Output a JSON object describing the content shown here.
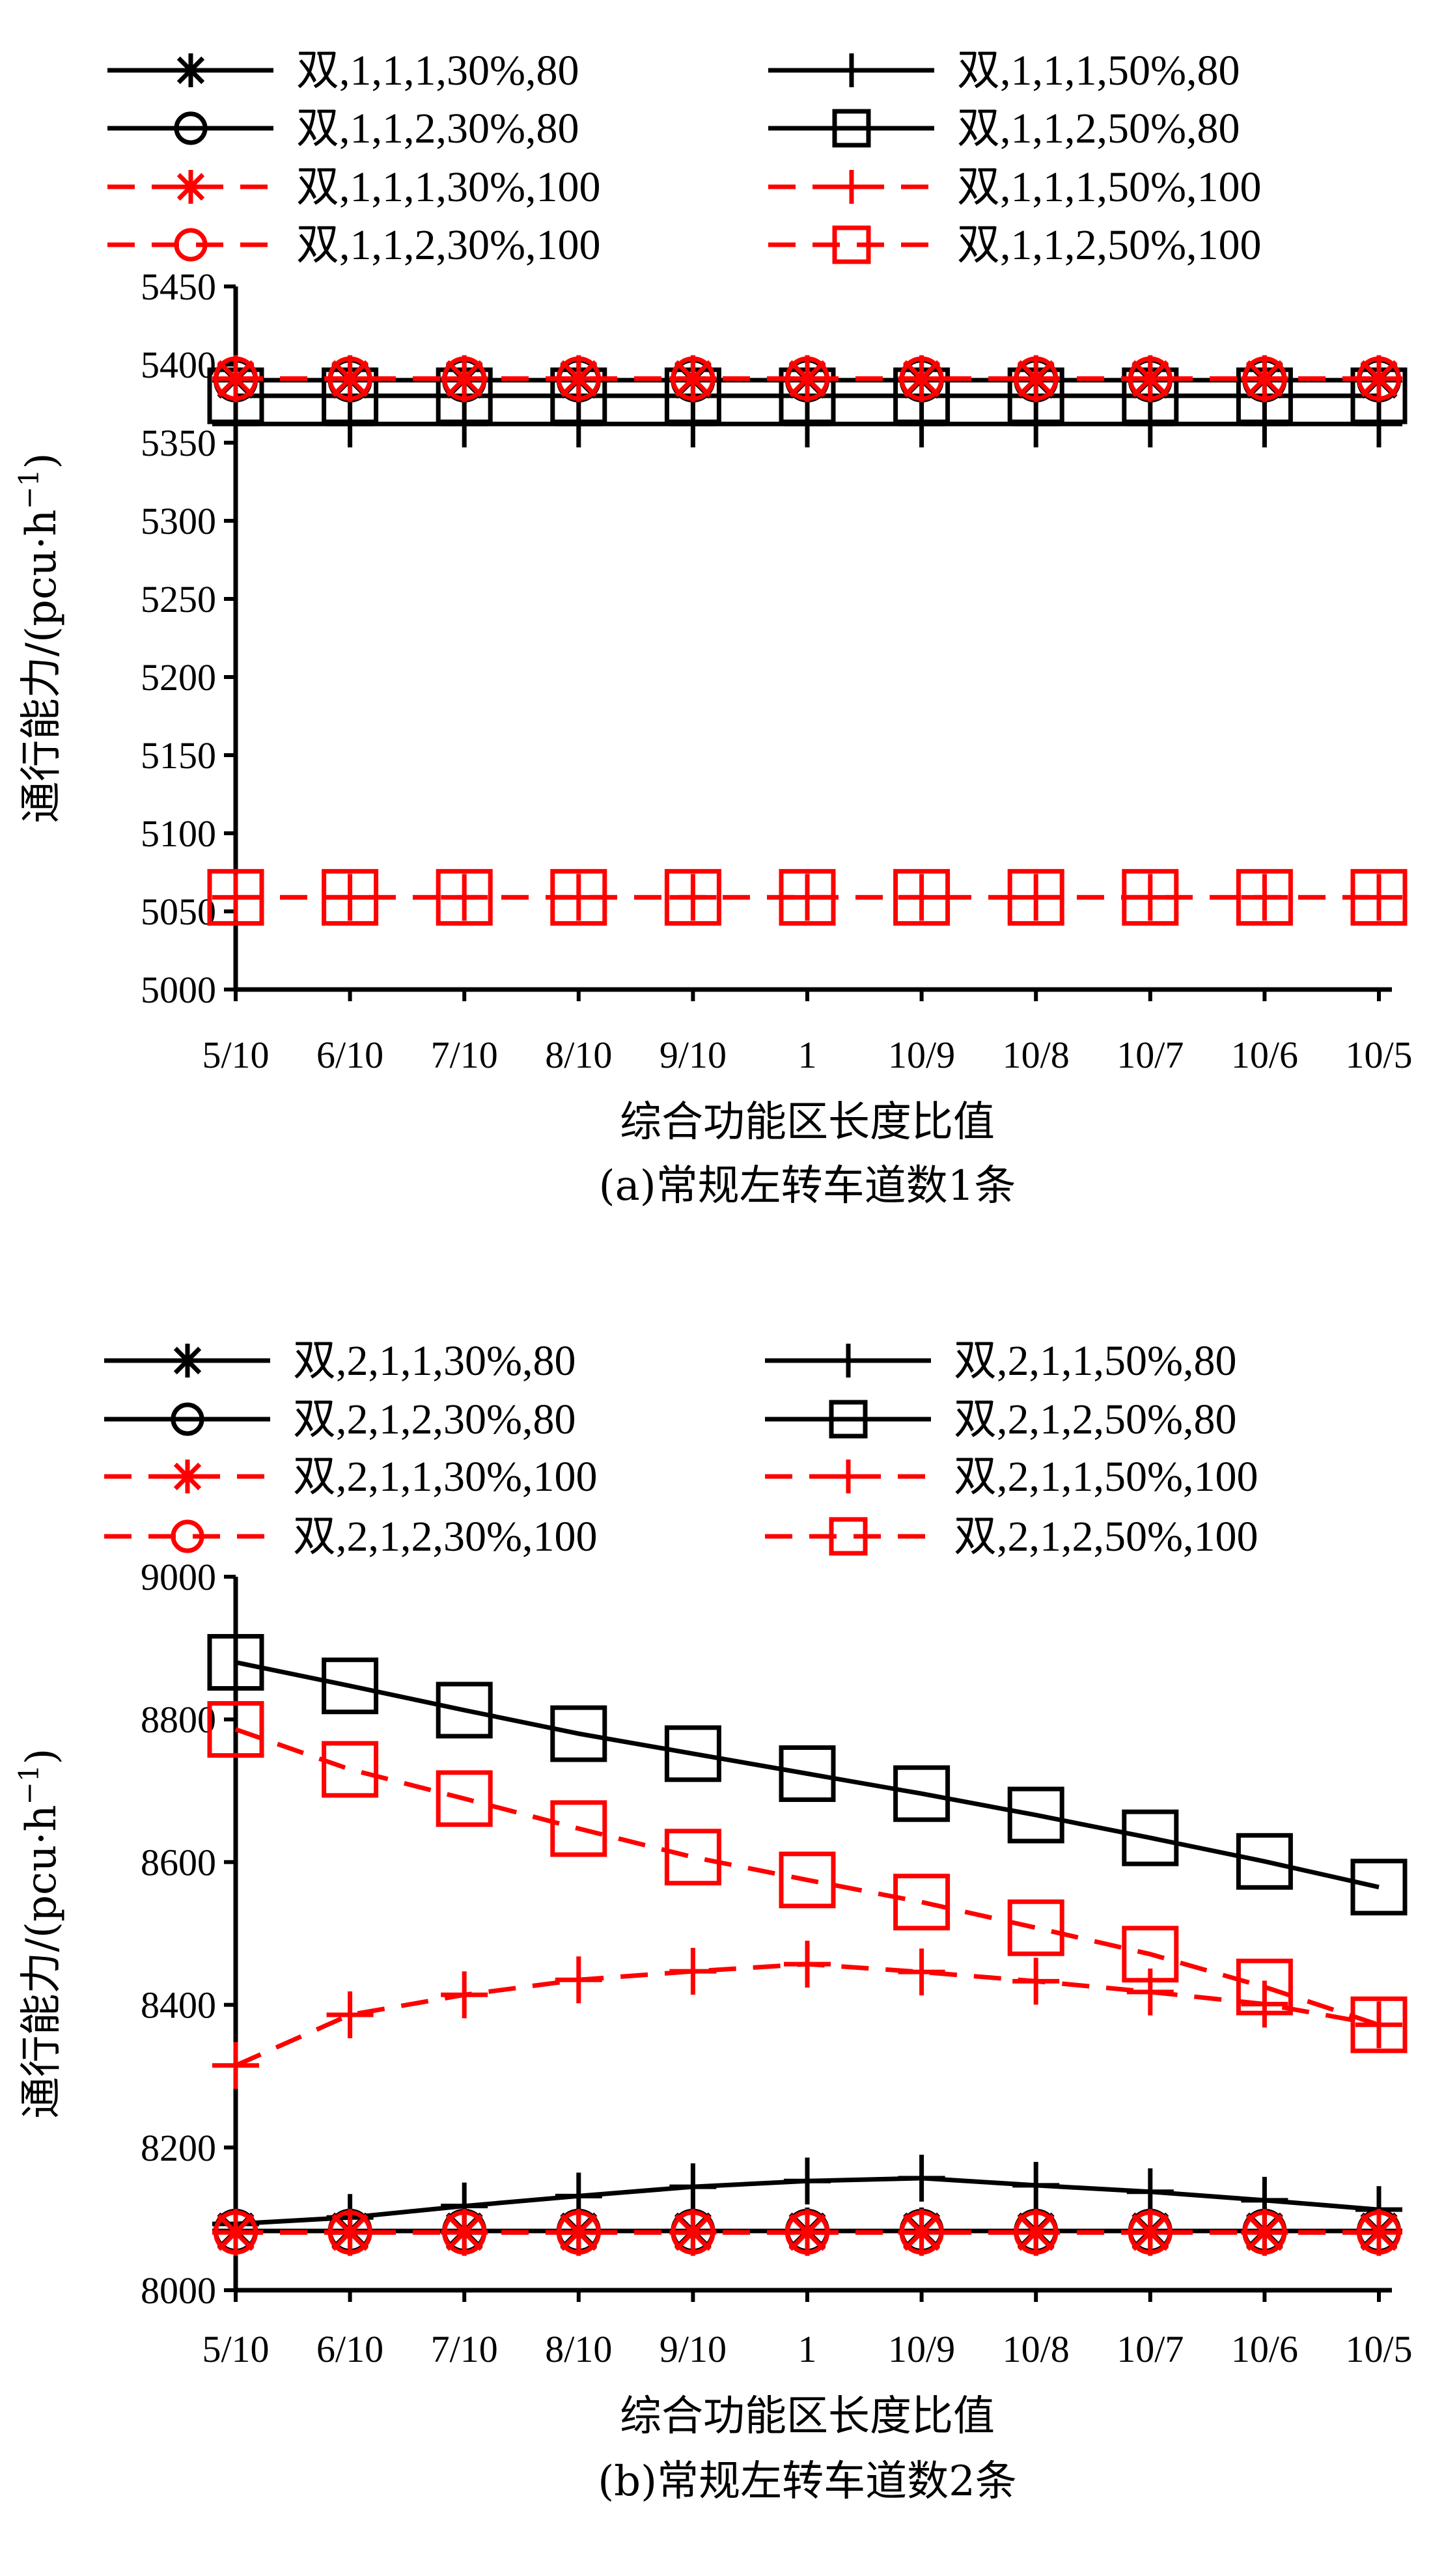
{
  "chart_data": [
    {
      "type": "line",
      "caption": "(a)常规左转车道数1条",
      "xlabel": "综合功能区长度比值",
      "ylabel": "通行能力/(pcu·h",
      "ylabel_sup": "−1",
      "ylabel_end": ")",
      "categories": [
        "5/10",
        "6/10",
        "7/10",
        "8/10",
        "9/10",
        "1",
        "10/9",
        "10/8",
        "10/7",
        "10/6",
        "10/5"
      ],
      "ylim": [
        5000,
        5450
      ],
      "yticks": [
        5000,
        5050,
        5100,
        5150,
        5200,
        5250,
        5300,
        5350,
        5400,
        5450
      ],
      "grid": false,
      "legend_position": "top",
      "series": [
        {
          "name": "双,1,1,1,30%,80",
          "marker": "asterisk",
          "color": "#000000",
          "dashed": false,
          "values": [
            5390,
            5390,
            5390,
            5390,
            5390,
            5390,
            5390,
            5390,
            5390,
            5390,
            5390
          ]
        },
        {
          "name": "双,1,1,1,50%,80",
          "marker": "plus",
          "color": "#000000",
          "dashed": false,
          "values": [
            5362,
            5362,
            5362,
            5362,
            5362,
            5362,
            5362,
            5362,
            5362,
            5362,
            5362
          ]
        },
        {
          "name": "双,1,1,2,30%,80",
          "marker": "circle",
          "color": "#000000",
          "dashed": false,
          "values": [
            5390,
            5390,
            5390,
            5390,
            5390,
            5390,
            5390,
            5390,
            5390,
            5390,
            5390
          ]
        },
        {
          "name": "双,1,1,2,50%,80",
          "marker": "square",
          "color": "#000000",
          "dashed": false,
          "values": [
            5380,
            5380,
            5380,
            5380,
            5380,
            5380,
            5380,
            5380,
            5380,
            5380,
            5380
          ]
        },
        {
          "name": "双,1,1,1,30%,100",
          "marker": "asterisk",
          "color": "#ff0000",
          "dashed": true,
          "values": [
            5391,
            5391,
            5391,
            5391,
            5391,
            5391,
            5391,
            5391,
            5391,
            5391,
            5391
          ]
        },
        {
          "name": "双,1,1,1,50%,100",
          "marker": "plus",
          "color": "#ff0000",
          "dashed": true,
          "values": [
            5059,
            5059,
            5059,
            5059,
            5059,
            5059,
            5059,
            5059,
            5059,
            5059,
            5059
          ]
        },
        {
          "name": "双,1,1,2,30%,100",
          "marker": "circle",
          "color": "#ff0000",
          "dashed": true,
          "values": [
            5391,
            5391,
            5391,
            5391,
            5391,
            5391,
            5391,
            5391,
            5391,
            5391,
            5391
          ]
        },
        {
          "name": "双,1,1,2,50%,100",
          "marker": "square",
          "color": "#ff0000",
          "dashed": true,
          "values": [
            5059,
            5059,
            5059,
            5059,
            5059,
            5059,
            5059,
            5059,
            5059,
            5059,
            5059
          ]
        }
      ]
    },
    {
      "type": "line",
      "caption": "(b)常规左转车道数2条",
      "xlabel": "综合功能区长度比值",
      "ylabel": "通行能力/(pcu·h",
      "ylabel_sup": "−1",
      "ylabel_end": ")",
      "categories": [
        "5/10",
        "6/10",
        "7/10",
        "8/10",
        "9/10",
        "1",
        "10/9",
        "10/8",
        "10/7",
        "10/6",
        "10/5"
      ],
      "ylim": [
        8000,
        9000
      ],
      "yticks": [
        8000,
        8200,
        8400,
        8600,
        8800,
        9000
      ],
      "grid": false,
      "legend_position": "top",
      "series": [
        {
          "name": "双,2,1,1,30%,80",
          "marker": "asterisk",
          "color": "#000000",
          "dashed": false,
          "values": [
            8083,
            8083,
            8083,
            8083,
            8083,
            8083,
            8083,
            8083,
            8083,
            8083,
            8083
          ]
        },
        {
          "name": "双,2,1,1,50%,80",
          "marker": "plus",
          "color": "#000000",
          "dashed": false,
          "values": [
            8093,
            8102,
            8118,
            8132,
            8145,
            8153,
            8157,
            8147,
            8138,
            8126,
            8113
          ]
        },
        {
          "name": "双,2,1,2,30%,80",
          "marker": "circle",
          "color": "#000000",
          "dashed": false,
          "values": [
            8083,
            8083,
            8083,
            8083,
            8083,
            8083,
            8083,
            8083,
            8083,
            8083,
            8083
          ]
        },
        {
          "name": "双,2,1,2,50%,80",
          "marker": "square",
          "color": "#000000",
          "dashed": false,
          "values": [
            8880,
            8847,
            8813,
            8780,
            8752,
            8724,
            8696,
            8666,
            8634,
            8601,
            8565
          ]
        },
        {
          "name": "双,2,1,1,30%,100",
          "marker": "asterisk",
          "color": "#ff0000",
          "dashed": true,
          "values": [
            8081,
            8081,
            8081,
            8081,
            8081,
            8081,
            8081,
            8081,
            8081,
            8081,
            8081
          ]
        },
        {
          "name": "双,2,1,1,50%,100",
          "marker": "plus",
          "color": "#ff0000",
          "dashed": true,
          "values": [
            8315,
            8386,
            8414,
            8435,
            8447,
            8457,
            8446,
            8433,
            8418,
            8401,
            8372
          ]
        },
        {
          "name": "双,2,1,2,30%,100",
          "marker": "circle",
          "color": "#ff0000",
          "dashed": true,
          "values": [
            8081,
            8081,
            8081,
            8081,
            8081,
            8081,
            8081,
            8081,
            8081,
            8081,
            8081
          ]
        },
        {
          "name": "双,2,1,2,50%,100",
          "marker": "square",
          "color": "#ff0000",
          "dashed": true,
          "values": [
            8786,
            8730,
            8689,
            8647,
            8607,
            8575,
            8544,
            8508,
            8471,
            8425,
            8372
          ]
        }
      ]
    }
  ]
}
